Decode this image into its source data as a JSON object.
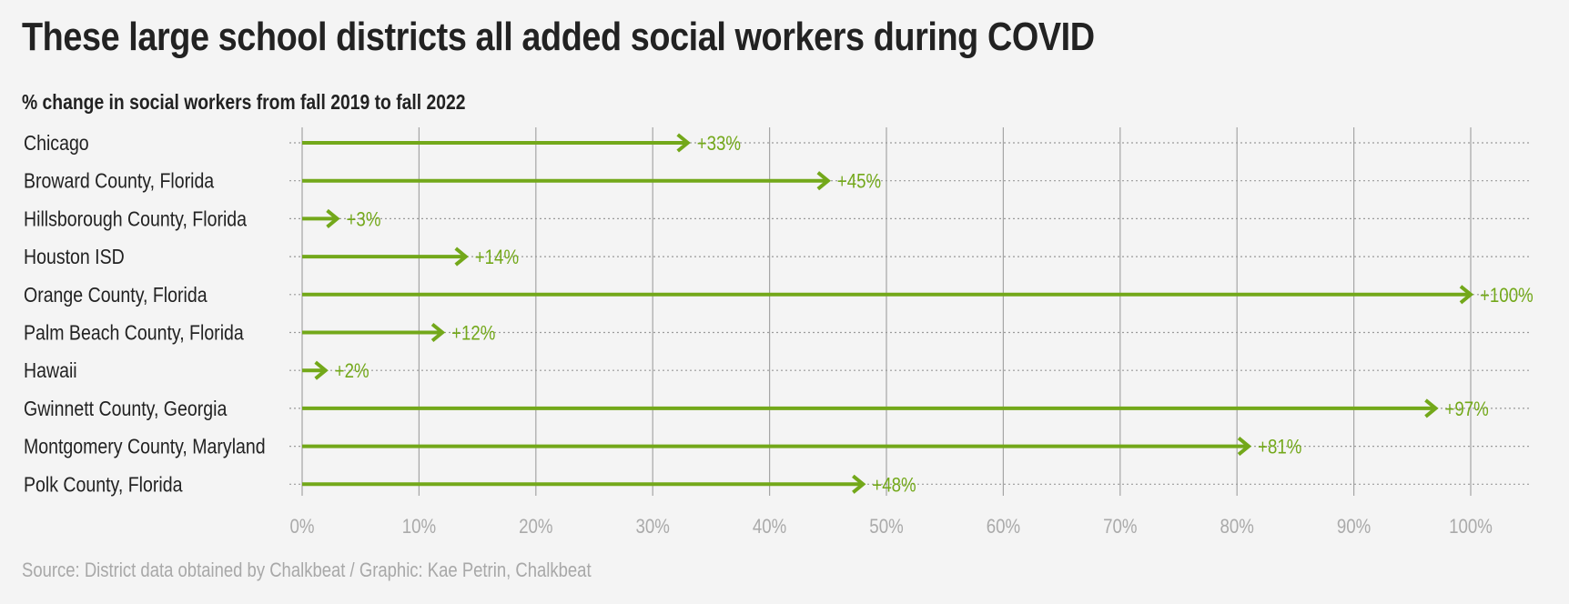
{
  "title": "These large school districts all added social workers during COVID",
  "subtitle": "% change in social workers from fall 2019 to fall 2022",
  "source": "Source: District data obtained by Chalkbeat / Graphic: Kae Petrin, Chalkbeat",
  "colors": {
    "bar": "#73a81a",
    "text": "#222222",
    "grid": "#a5a5a5",
    "axis_text": "#aaaaaa",
    "background": "#f4f4f4"
  },
  "chart_data": {
    "type": "bar",
    "orientation": "horizontal",
    "mark_style": "arrow",
    "categories": [
      "Chicago",
      "Broward County, Florida",
      "Hillsborough County, Florida",
      "Houston ISD",
      "Orange County, Florida",
      "Palm Beach County, Florida",
      "Hawaii",
      "Gwinnett County, Georgia",
      "Montgomery County, Maryland",
      "Polk County, Florida"
    ],
    "values": [
      33,
      45,
      3,
      14,
      100,
      12,
      2,
      97,
      81,
      48
    ],
    "data_labels": [
      "+33%",
      "+45%",
      "+3%",
      "+14%",
      "+100%",
      "+12%",
      "+2%",
      "+97%",
      "+81%",
      "+48%"
    ],
    "xlim": [
      0,
      100
    ],
    "xticks": [
      0,
      10,
      20,
      30,
      40,
      50,
      60,
      70,
      80,
      90,
      100
    ],
    "xtick_labels": [
      "0%",
      "10%",
      "20%",
      "30%",
      "40%",
      "50%",
      "60%",
      "70%",
      "80%",
      "90%",
      "100%"
    ],
    "grid": true,
    "legend": "none"
  }
}
